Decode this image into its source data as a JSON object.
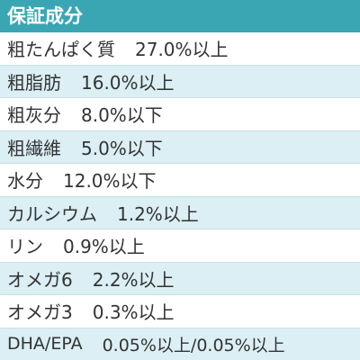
{
  "header": {
    "title": "保証成分"
  },
  "table": {
    "rows": [
      [
        "粗たんぱく質",
        "27.0%以上"
      ],
      [
        "粗脂肪",
        "16.0%以上"
      ],
      [
        "粗灰分",
        "8.0%以下"
      ],
      [
        "粗繊維",
        "5.0%以下"
      ],
      [
        "水分",
        "12.0%以下"
      ],
      [
        "カルシウム",
        "1.2%以上"
      ],
      [
        "リン",
        "0.9%以上"
      ],
      [
        "オメガ6",
        "2.2%以上"
      ],
      [
        "オメガ3",
        "0.3%以上"
      ],
      [
        "DHA/EPA",
        "0.05%以上/0.05%以上"
      ]
    ]
  }
}
